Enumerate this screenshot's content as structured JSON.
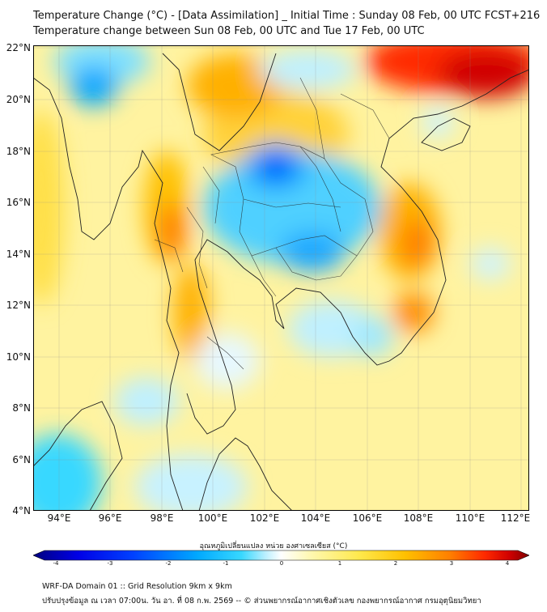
{
  "titles": {
    "line1": "Temperature Change (°C) - [Data Assimilation] _ Initial Time : Sunday 08 Feb, 00 UTC FCST+216",
    "line2": "Temperature change between Sun 08 Feb, 00 UTC and Tue 17 Feb, 00 UTC"
  },
  "map": {
    "lat_ticks": [
      "22°N",
      "20°N",
      "18°N",
      "16°N",
      "14°N",
      "12°N",
      "10°N",
      "8°N",
      "6°N",
      "4°N"
    ],
    "lon_ticks": [
      "94°E",
      "96°E",
      "98°E",
      "100°E",
      "102°E",
      "104°E",
      "106°E",
      "108°E",
      "110°E",
      "112°E"
    ],
    "lat_range": [
      4,
      22
    ],
    "lon_range": [
      93,
      112.3
    ],
    "grid": true
  },
  "colorbar": {
    "label": "อุณหภูมิเปลี่ยนแปลง หน่วย องศาเซลเซียส (°C)",
    "ticks": [
      "-4",
      "-3",
      "-2",
      "-1",
      "0",
      "1",
      "2",
      "3",
      "4"
    ],
    "range": [
      -4,
      4
    ],
    "colors": [
      "#00007f",
      "#0000e6",
      "#0040ff",
      "#00a8ff",
      "#38d8ff",
      "#bff0ff",
      "#ffffff",
      "#fff8b0",
      "#ffe84a",
      "#ffc000",
      "#ff7f00",
      "#ff2a00",
      "#d00000",
      "#7f0000"
    ]
  },
  "footer": {
    "line1": "WRF-DA Domain 01 :: Grid Resolution 9km x 9km",
    "line2": "ปรับปรุงข้อมูล ณ เวลา 07:00น. วัน อา. ที่ 08 ก.พ. 2569 -- © ส่วนพยากรณ์อากาศเชิงตัวเลข กองพยากรณ์อากาศ กรมอุตุนิยมวิทยา"
  }
}
